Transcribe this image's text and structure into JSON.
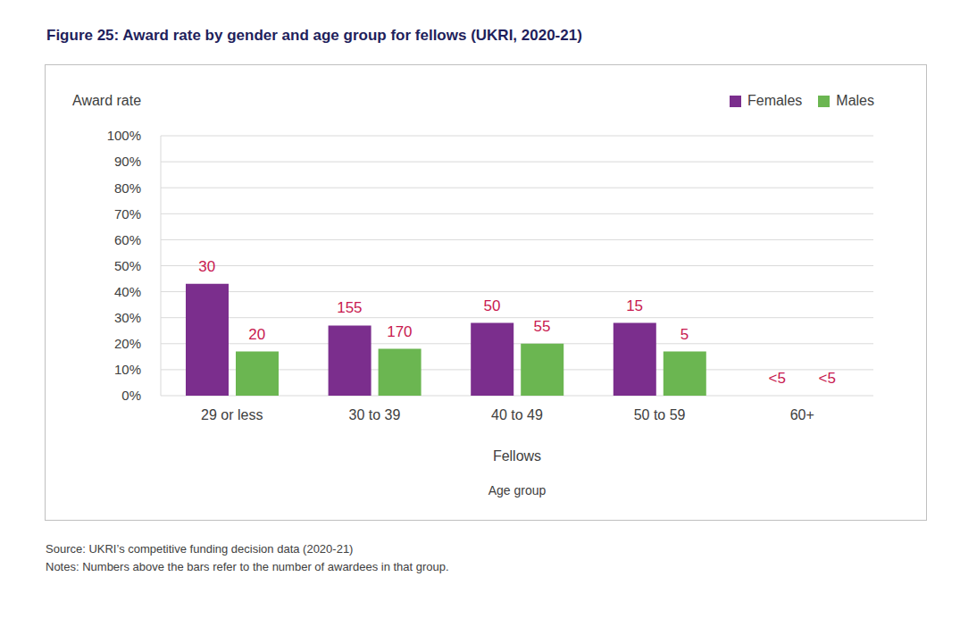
{
  "chart_data": {
    "type": "bar",
    "title": "Figure 25: Award rate by gender and age group for fellows (UKRI, 2020-21)",
    "ylabel": "Award rate",
    "xlabel": "Age group",
    "x_group_label": "Fellows",
    "categories": [
      "29 or less",
      "30 to 39",
      "40 to 49",
      "50 to 59",
      "60+"
    ],
    "series": [
      {
        "name": "Females",
        "color": "#7b2e8d",
        "values": [
          43,
          27,
          28,
          28,
          null
        ],
        "labels": [
          "30",
          "155",
          "50",
          "15",
          "<5"
        ]
      },
      {
        "name": "Males",
        "color": "#6bb651",
        "values": [
          17,
          18,
          20,
          17,
          null
        ],
        "labels": [
          "20",
          "170",
          "55",
          "5",
          "<5"
        ]
      }
    ],
    "ylim": [
      0,
      100
    ],
    "yticks": [
      {
        "value": 0,
        "label": "0%"
      },
      {
        "value": 10,
        "label": "10%"
      },
      {
        "value": 20,
        "label": "20%"
      },
      {
        "value": 30,
        "label": "30%"
      },
      {
        "value": 40,
        "label": "40%"
      },
      {
        "value": 50,
        "label": "50%"
      },
      {
        "value": 60,
        "label": "60%"
      },
      {
        "value": 70,
        "label": "70%"
      },
      {
        "value": 80,
        "label": "80%"
      },
      {
        "value": 90,
        "label": "90%"
      },
      {
        "value": 100,
        "label": "100%"
      }
    ],
    "grid": true,
    "legend": "top-right",
    "source": "Source: UKRI’s competitive funding decision data (2020-21)",
    "notes": "Notes: Numbers above the bars refer to the number of awardees in that group."
  }
}
